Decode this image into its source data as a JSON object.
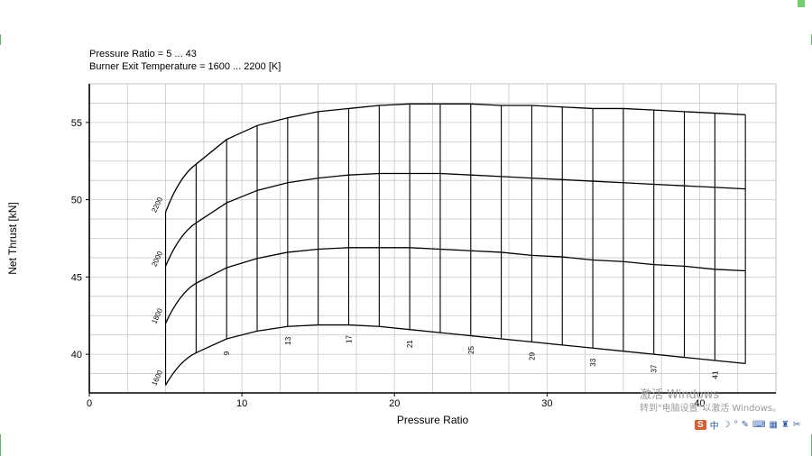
{
  "header": {
    "line1": "Pressure Ratio = 5 ... 43",
    "line2": "Burner Exit Temperature = 1600 ... 2200 [K]"
  },
  "watermark": {
    "line1": "激活 Windows",
    "line2": "转到\"电脑设置\"以激活 Windows。"
  },
  "tray": {
    "badge": "S",
    "lang": "中",
    "icons": [
      "moon-icon",
      "comma-icon",
      "mic-icon",
      "keyboard-icon",
      "grid-icon",
      "shirt-icon",
      "tools-icon"
    ],
    "glyphs": [
      "☽",
      "°",
      "✎",
      "⌨",
      "▦",
      "♜",
      "✂"
    ]
  },
  "chart_data": {
    "type": "line",
    "title": "",
    "xlabel": "Pressure Ratio",
    "ylabel": "Net Thrust [kN]",
    "xlim": [
      0,
      45
    ],
    "ylim": [
      37.5,
      57.5
    ],
    "xticks": [
      0,
      10,
      20,
      30,
      40
    ],
    "yticks": [
      40,
      45,
      50,
      55
    ],
    "grid": true,
    "grid_x_step": 2.5,
    "grid_y_step": 1.25,
    "x": [
      5,
      7,
      9,
      11,
      13,
      15,
      17,
      19,
      21,
      23,
      25,
      27,
      29,
      31,
      33,
      35,
      37,
      39,
      41,
      43
    ],
    "series": [
      {
        "name": "1600",
        "values": [
          38.0,
          40.1,
          41.0,
          41.5,
          41.8,
          41.9,
          41.9,
          41.8,
          41.6,
          41.4,
          41.2,
          41.0,
          40.8,
          40.6,
          40.4,
          40.2,
          40.0,
          39.8,
          39.6,
          39.4
        ]
      },
      {
        "name": "1800",
        "values": [
          42.0,
          44.6,
          45.6,
          46.2,
          46.6,
          46.8,
          46.9,
          46.9,
          46.9,
          46.8,
          46.7,
          46.6,
          46.4,
          46.3,
          46.1,
          46.0,
          45.8,
          45.7,
          45.5,
          45.4
        ]
      },
      {
        "name": "2000",
        "values": [
          45.7,
          48.5,
          49.8,
          50.6,
          51.1,
          51.4,
          51.6,
          51.7,
          51.7,
          51.7,
          51.6,
          51.5,
          51.4,
          51.3,
          51.2,
          51.1,
          51.0,
          50.9,
          50.8,
          50.7
        ]
      },
      {
        "name": "2200",
        "values": [
          49.2,
          52.3,
          53.9,
          54.8,
          55.3,
          55.7,
          55.9,
          56.1,
          56.2,
          56.2,
          56.2,
          56.1,
          56.1,
          56.0,
          55.9,
          55.9,
          55.8,
          55.7,
          55.6,
          55.5
        ]
      }
    ],
    "series_labels": [
      "1600",
      "1800",
      "2000",
      "2200"
    ],
    "pressure_labels": [
      {
        "x": 9,
        "text": "9"
      },
      {
        "x": 13,
        "text": "13"
      },
      {
        "x": 17,
        "text": "17"
      },
      {
        "x": 21,
        "text": "21"
      },
      {
        "x": 25,
        "text": "25"
      },
      {
        "x": 29,
        "text": "29"
      },
      {
        "x": 33,
        "text": "33"
      },
      {
        "x": 37,
        "text": "37"
      },
      {
        "x": 41,
        "text": "41"
      }
    ]
  }
}
